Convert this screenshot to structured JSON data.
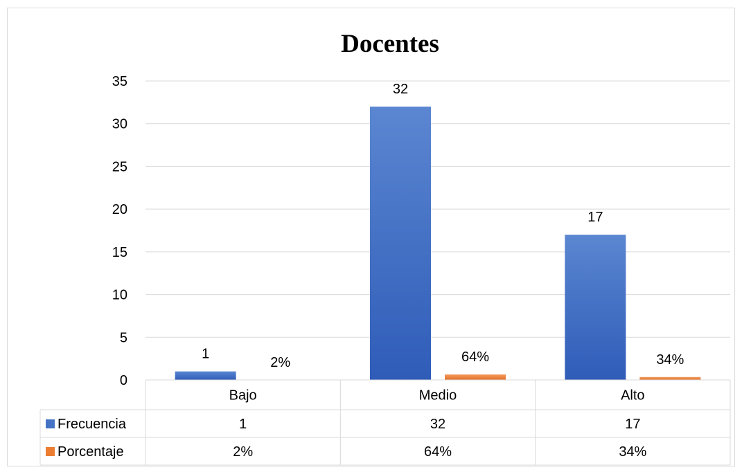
{
  "chart_data": {
    "type": "bar",
    "title": "Docentes",
    "xlabel": "",
    "ylabel": "",
    "categories": [
      "Bajo",
      "Medio",
      "Alto"
    ],
    "ylim": [
      0,
      35
    ],
    "yticks": [
      0,
      5,
      10,
      15,
      20,
      25,
      30,
      35
    ],
    "grid": true,
    "legend": "data-table",
    "series": [
      {
        "name": "Frecuencia",
        "values": [
          1,
          32,
          17
        ],
        "labels": [
          "1",
          "32",
          "17"
        ],
        "color": "#4472C4"
      },
      {
        "name": "Porcentaje",
        "values": [
          0.02,
          0.64,
          0.34
        ],
        "labels": [
          "2%",
          "64%",
          "34%"
        ],
        "color": "#ED7D31"
      }
    ]
  }
}
